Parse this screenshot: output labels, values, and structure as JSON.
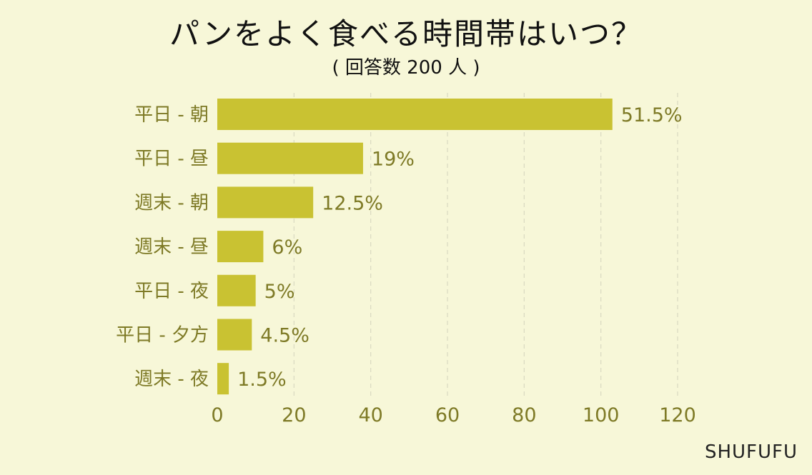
{
  "chart_data": {
    "type": "bar",
    "orientation": "horizontal",
    "title": "パンをよく食べる時間帯はいつ？",
    "subtitle": "( 回答数 200 人 )",
    "categories": [
      "平日 - 朝",
      "平日 - 昼",
      "週末 - 朝",
      "週末 - 昼",
      "平日 - 夜",
      "平日 - 夕方",
      "週末 - 夜"
    ],
    "values": [
      103,
      38,
      25,
      12,
      10,
      9,
      3
    ],
    "data_labels": [
      "51.5%",
      "19%",
      "12.5%",
      "6%",
      "5%",
      "4.5%",
      "1.5%"
    ],
    "xlim": [
      0,
      120
    ],
    "xticks": [
      0,
      20,
      40,
      60,
      80,
      100,
      120
    ],
    "xlabel": "",
    "ylabel": "",
    "grid": "vertical dashed",
    "legend": "none"
  },
  "colors": {
    "background": "#f7f7d8",
    "bar": "#c9c232",
    "label_text": "#7e7a26",
    "gridline": "#d9d9c0"
  },
  "source_label": "SHUFUFU"
}
